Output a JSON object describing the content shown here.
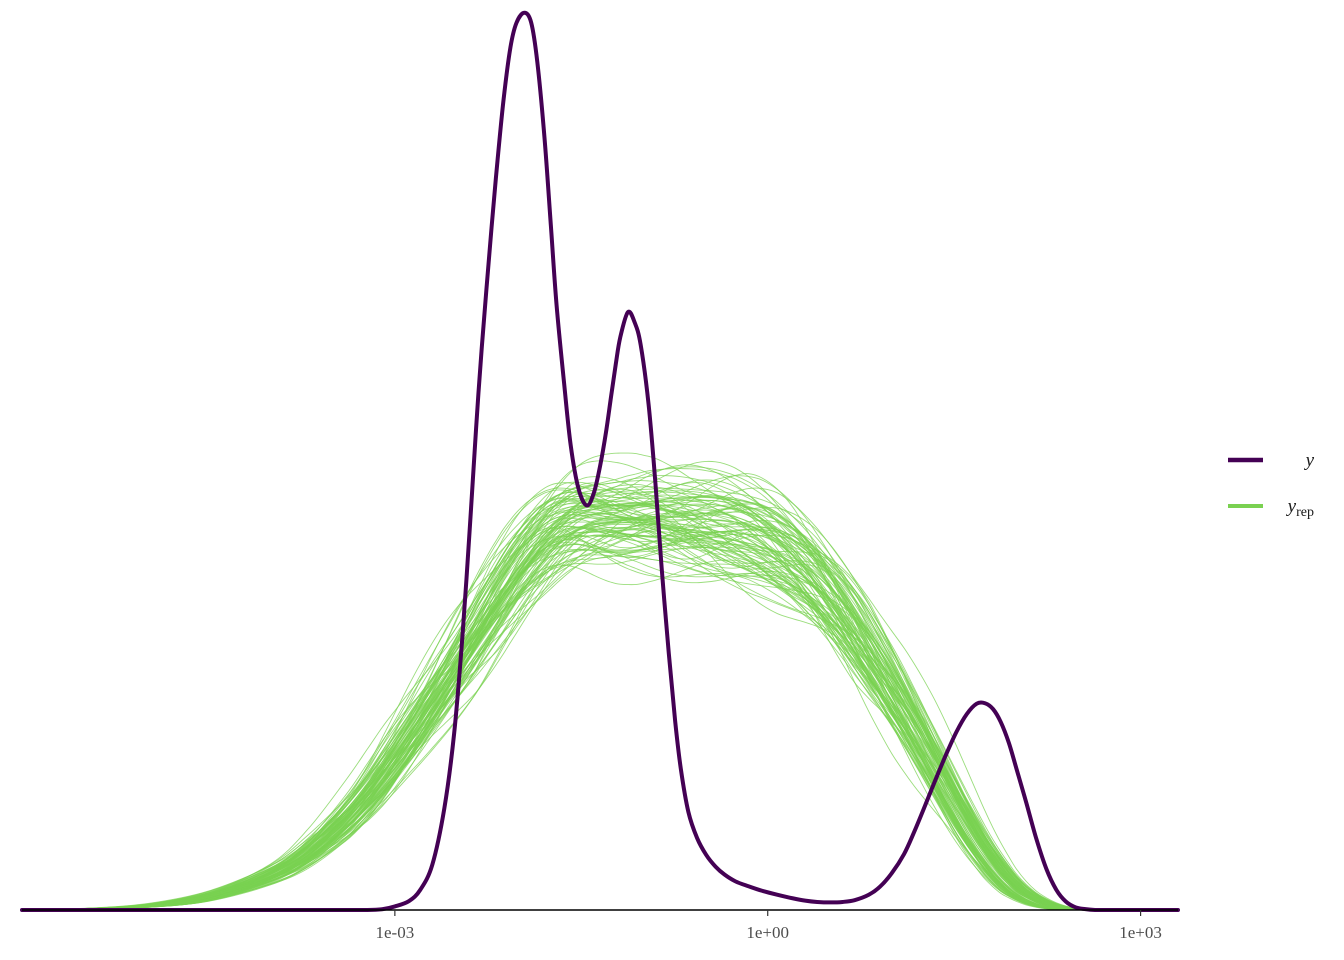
{
  "chart_data": {
    "type": "line",
    "title": "",
    "xlabel": "",
    "ylabel": "",
    "x_scale": "log10",
    "xlim": [
      1e-06,
      2000
    ],
    "ylim": [
      0,
      0.2
    ],
    "grid": false,
    "legend_position": "right",
    "x_ticks": [
      {
        "value": 0.001,
        "label": "1e-03"
      },
      {
        "value": 1,
        "label": "1e+00"
      },
      {
        "value": 1000,
        "label": "1e+03"
      }
    ],
    "series": [
      {
        "name": "y",
        "color": "#440154",
        "x": [
          1e-06,
          3.16e-06,
          1e-05,
          3.16e-05,
          0.0001,
          0.0002,
          0.0004,
          0.0006,
          0.0008,
          0.001,
          0.0013,
          0.0016,
          0.002,
          0.0025,
          0.003,
          0.0035,
          0.004,
          0.0045,
          0.005,
          0.006,
          0.0067,
          0.0075,
          0.0085,
          0.0095,
          0.011,
          0.0125,
          0.014,
          0.016,
          0.018,
          0.02,
          0.023,
          0.026,
          0.03,
          0.035,
          0.04,
          0.045,
          0.05,
          0.055,
          0.06,
          0.065,
          0.075,
          0.085,
          0.095,
          0.11,
          0.125,
          0.14,
          0.16,
          0.18,
          0.2,
          0.23,
          0.27,
          0.32,
          0.38,
          0.45,
          0.55,
          0.7,
          0.9,
          1.2,
          1.6,
          2.0,
          2.5,
          3.2,
          4.0,
          5.0,
          6.5,
          8.0,
          10.0,
          12.5,
          15.0,
          18.0,
          22.0,
          27.0,
          33.0,
          40.0,
          48.0,
          56.0,
          65.0,
          75.0,
          87.0,
          100.0,
          120.0,
          145.0,
          175.0,
          210.0,
          250.0,
          300.0,
          360.0,
          430.0,
          520.0,
          650.0,
          800.0,
          1000.0,
          1300.0,
          1600.0,
          2000.0
        ],
        "y": [
          0.0,
          0.0,
          0.0,
          0.0,
          0.0,
          0.0,
          0.0,
          0.0,
          0.0002,
          0.0008,
          0.002,
          0.0045,
          0.0101,
          0.0227,
          0.0395,
          0.0613,
          0.085,
          0.1075,
          0.1256,
          0.1526,
          0.1675,
          0.1812,
          0.1927,
          0.1982,
          0.2005,
          0.1983,
          0.1895,
          0.1725,
          0.1529,
          0.1352,
          0.1177,
          0.1038,
          0.0942,
          0.0904,
          0.0933,
          0.0995,
          0.1068,
          0.1149,
          0.1221,
          0.1279,
          0.1336,
          0.1313,
          0.1263,
          0.113,
          0.0952,
          0.0766,
          0.0573,
          0.0422,
          0.0315,
          0.0219,
          0.0161,
          0.0123,
          0.0097,
          0.0079,
          0.0064,
          0.0053,
          0.0043,
          0.0034,
          0.0026,
          0.0021,
          0.0018,
          0.0017,
          0.0018,
          0.0022,
          0.0034,
          0.0052,
          0.0083,
          0.0125,
          0.0173,
          0.0226,
          0.0286,
          0.0345,
          0.0398,
          0.0438,
          0.0461,
          0.0462,
          0.0449,
          0.042,
          0.0374,
          0.0317,
          0.0241,
          0.0159,
          0.0091,
          0.0045,
          0.0019,
          0.0006,
          0.0002,
          0.0,
          0.0,
          0.0,
          0.0,
          0.0,
          0.0,
          0.0,
          0.0
        ]
      },
      {
        "name": "y_rep",
        "color": "#7ad151",
        "draws": 100,
        "x": [
          1e-06,
          3.16e-06,
          1e-05,
          3.16e-05,
          0.0001,
          0.0002,
          0.0004,
          0.0006,
          0.0008,
          0.001,
          0.0013,
          0.0016,
          0.002,
          0.0025,
          0.003,
          0.0035,
          0.004,
          0.0045,
          0.005,
          0.006,
          0.0067,
          0.0075,
          0.0085,
          0.0095,
          0.011,
          0.0125,
          0.014,
          0.016,
          0.018,
          0.02,
          0.023,
          0.026,
          0.03,
          0.035,
          0.04,
          0.045,
          0.05,
          0.055,
          0.06,
          0.065,
          0.075,
          0.085,
          0.095,
          0.11,
          0.125,
          0.14,
          0.16,
          0.18,
          0.2,
          0.23,
          0.27,
          0.32,
          0.38,
          0.45,
          0.55,
          0.7,
          0.9,
          1.2,
          1.6,
          2.0,
          2.5,
          3.2,
          4.0,
          5.0,
          6.5,
          8.0,
          10.0,
          12.5,
          15.0,
          18.0,
          22.0,
          27.0,
          33.0,
          40.0,
          48.0,
          56.0,
          65.0,
          75.0,
          87.0,
          100.0,
          120.0,
          145.0,
          175.0,
          210.0,
          250.0,
          300.0,
          360.0,
          430.0,
          520.0,
          650.0,
          800.0,
          1000.0,
          1300.0,
          1600.0,
          2000.0
        ],
        "y_typical": [
          0.0,
          0.0002,
          0.0008,
          0.0027,
          0.0076,
          0.0125,
          0.0198,
          0.0254,
          0.0299,
          0.0338,
          0.0384,
          0.0423,
          0.0465,
          0.0508,
          0.0544,
          0.0574,
          0.0601,
          0.0625,
          0.0646,
          0.0682,
          0.0703,
          0.0725,
          0.0747,
          0.0766,
          0.0789,
          0.0807,
          0.0822,
          0.0838,
          0.085,
          0.0859,
          0.0868,
          0.0874,
          0.0878,
          0.0879,
          0.0878,
          0.0877,
          0.0876,
          0.0875,
          0.0874,
          0.0874,
          0.0874,
          0.0873,
          0.0873,
          0.0873,
          0.0872,
          0.0871,
          0.087,
          0.0869,
          0.0868,
          0.0867,
          0.0866,
          0.0864,
          0.0862,
          0.0859,
          0.0855,
          0.0847,
          0.0836,
          0.0816,
          0.0791,
          0.0768,
          0.0739,
          0.0703,
          0.0666,
          0.0627,
          0.0575,
          0.0535,
          0.0492,
          0.0445,
          0.0408,
          0.0368,
          0.0324,
          0.0278,
          0.0234,
          0.0192,
          0.0155,
          0.0127,
          0.0102,
          0.0079,
          0.006,
          0.0044,
          0.003,
          0.0018,
          0.001,
          0.0005,
          0.0002,
          0.0001,
          0.0,
          0.0,
          0.0,
          0.0,
          0.0,
          0.0,
          0.0,
          0.0,
          0.0
        ]
      }
    ]
  },
  "legend": {
    "items": [
      {
        "label": "y",
        "subscript": "",
        "color": "#440154"
      },
      {
        "label": "y",
        "subscript": "rep",
        "color": "#7ad151"
      }
    ]
  }
}
